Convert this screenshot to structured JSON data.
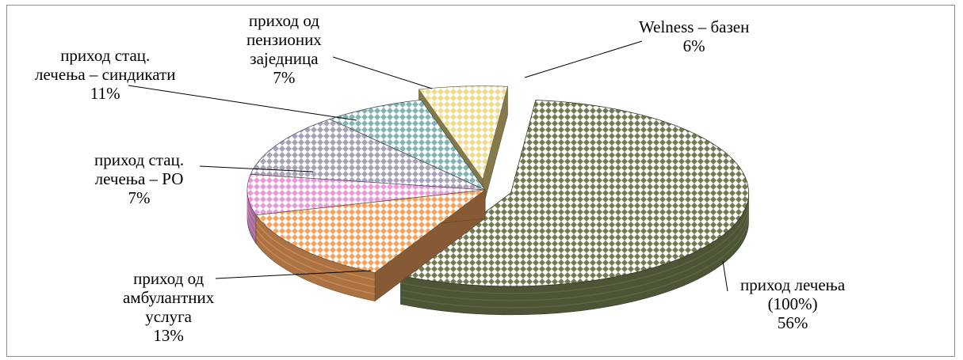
{
  "chart_data": {
    "type": "pie",
    "title": "",
    "three_d": true,
    "slices": [
      {
        "name": "приход лечења (100%)",
        "label_lines": [
          "приход лечења",
          "(100%)"
        ],
        "value": 56,
        "pct_label": "56%",
        "color": "#6e7a4f",
        "exploded": true
      },
      {
        "name": "приход од амбулантних услуга",
        "label_lines": [
          "приход од",
          "амбулантних",
          "услуга"
        ],
        "value": 13,
        "pct_label": "13%",
        "color": "#f4a460",
        "exploded": false
      },
      {
        "name": "приход стац. лечења – РО",
        "label_lines": [
          "приход стац.",
          "лечења – РО"
        ],
        "value": 7,
        "pct_label": "7%",
        "color": "#e89ad8",
        "exploded": false
      },
      {
        "name": "приход стац. лечења – синдикати",
        "label_lines": [
          "приход стац.",
          "лечења – синдикати"
        ],
        "value": 11,
        "pct_label": "11%",
        "color": "#a6a0bd",
        "exploded": false
      },
      {
        "name": "приход од пензионих заједница",
        "label_lines": [
          "приход од",
          "пензионих",
          "заједница"
        ],
        "value": 7,
        "pct_label": "7%",
        "color": "#7fb3b8",
        "exploded": false
      },
      {
        "name": "Welness – базен",
        "label_lines": [
          "Welness – базен"
        ],
        "value": 6,
        "pct_label": "6%",
        "color": "#f2dc8a",
        "exploded": true
      }
    ]
  }
}
